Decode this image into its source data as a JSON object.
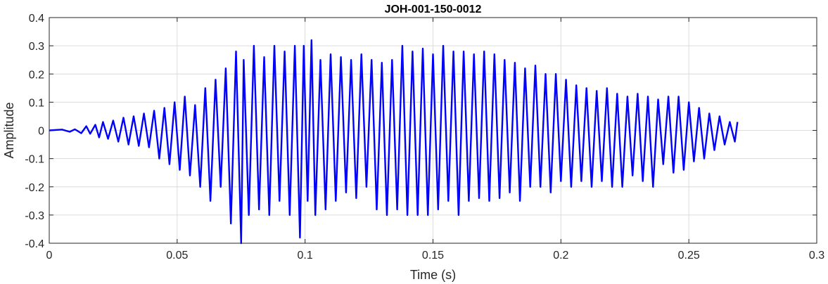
{
  "chart_data": {
    "type": "line",
    "title": "JOH-001-150-0012",
    "xlabel": "Time (s)",
    "ylabel": "Amplitude",
    "xlim": [
      0,
      0.3
    ],
    "ylim": [
      -0.4,
      0.4
    ],
    "xticks": [
      0,
      0.05,
      0.1,
      0.15,
      0.2,
      0.25,
      0.3
    ],
    "xtick_labels": [
      "0",
      "0.05",
      "0.1",
      "0.15",
      "0.2",
      "0.25",
      "0.3"
    ],
    "yticks": [
      -0.4,
      -0.3,
      -0.2,
      -0.1,
      0,
      0.1,
      0.2,
      0.3,
      0.4
    ],
    "ytick_labels": [
      "-0.4",
      "-0.3",
      "-0.2",
      "-0.1",
      "0",
      "0.1",
      "0.2",
      "0.3",
      "0.4"
    ],
    "grid": true,
    "line_color": "#0000ff",
    "series": [
      {
        "x": [
          0.0,
          0.005,
          0.008,
          0.01,
          0.0125,
          0.0145,
          0.016,
          0.018,
          0.0195,
          0.021,
          0.023,
          0.025,
          0.027,
          0.029,
          0.031,
          0.033,
          0.035,
          0.037,
          0.039,
          0.041,
          0.043,
          0.045,
          0.047,
          0.049,
          0.051,
          0.053,
          0.055,
          0.057,
          0.059,
          0.061,
          0.063,
          0.065,
          0.067,
          0.069,
          0.071,
          0.073,
          0.075,
          0.076,
          0.078,
          0.08,
          0.082,
          0.084,
          0.086,
          0.088,
          0.09,
          0.092,
          0.094,
          0.096,
          0.098,
          0.0995,
          0.101,
          0.1025,
          0.104,
          0.106,
          0.108,
          0.11,
          0.112,
          0.114,
          0.116,
          0.118,
          0.12,
          0.122,
          0.124,
          0.126,
          0.128,
          0.13,
          0.132,
          0.134,
          0.136,
          0.138,
          0.14,
          0.142,
          0.144,
          0.146,
          0.148,
          0.15,
          0.152,
          0.154,
          0.156,
          0.158,
          0.16,
          0.162,
          0.164,
          0.166,
          0.168,
          0.17,
          0.172,
          0.174,
          0.176,
          0.178,
          0.18,
          0.182,
          0.184,
          0.186,
          0.188,
          0.19,
          0.192,
          0.194,
          0.196,
          0.198,
          0.2,
          0.202,
          0.204,
          0.206,
          0.208,
          0.21,
          0.212,
          0.214,
          0.216,
          0.218,
          0.22,
          0.222,
          0.224,
          0.226,
          0.228,
          0.23,
          0.232,
          0.234,
          0.236,
          0.238,
          0.24,
          0.242,
          0.244,
          0.246,
          0.248,
          0.25,
          0.252,
          0.254,
          0.256,
          0.258,
          0.26,
          0.262,
          0.264,
          0.266,
          0.268,
          0.269
        ],
        "y": [
          0.0,
          0.003,
          -0.005,
          0.004,
          -0.01,
          0.015,
          -0.012,
          0.02,
          -0.025,
          0.03,
          -0.03,
          0.035,
          -0.04,
          0.045,
          -0.05,
          0.05,
          -0.055,
          0.06,
          -0.06,
          0.07,
          -0.1,
          0.08,
          -0.12,
          0.1,
          -0.14,
          0.12,
          -0.16,
          0.09,
          -0.2,
          0.15,
          -0.25,
          0.18,
          -0.2,
          0.22,
          -0.33,
          0.28,
          -0.4,
          0.25,
          -0.3,
          0.3,
          -0.28,
          0.26,
          -0.3,
          0.3,
          -0.25,
          0.28,
          -0.3,
          0.3,
          -0.38,
          0.3,
          -0.25,
          0.32,
          -0.3,
          0.25,
          -0.28,
          0.27,
          -0.25,
          0.26,
          -0.22,
          0.25,
          -0.24,
          0.27,
          -0.2,
          0.25,
          -0.28,
          0.24,
          -0.3,
          0.25,
          -0.28,
          0.3,
          -0.3,
          0.28,
          -0.3,
          0.29,
          -0.3,
          0.27,
          -0.28,
          0.3,
          -0.25,
          0.28,
          -0.3,
          0.28,
          -0.25,
          0.27,
          -0.24,
          0.28,
          -0.25,
          0.27,
          -0.24,
          0.25,
          -0.22,
          0.24,
          -0.25,
          0.22,
          -0.2,
          0.23,
          -0.2,
          0.2,
          -0.22,
          0.2,
          -0.18,
          0.18,
          -0.2,
          0.16,
          -0.18,
          0.15,
          -0.2,
          0.14,
          -0.18,
          0.15,
          -0.2,
          0.13,
          -0.2,
          0.12,
          -0.16,
          0.13,
          -0.18,
          0.12,
          -0.2,
          0.11,
          -0.12,
          0.12,
          -0.15,
          0.12,
          -0.14,
          0.1,
          -0.11,
          0.08,
          -0.1,
          0.06,
          -0.07,
          0.05,
          -0.05,
          0.03,
          -0.04,
          0.03
        ]
      }
    ]
  }
}
